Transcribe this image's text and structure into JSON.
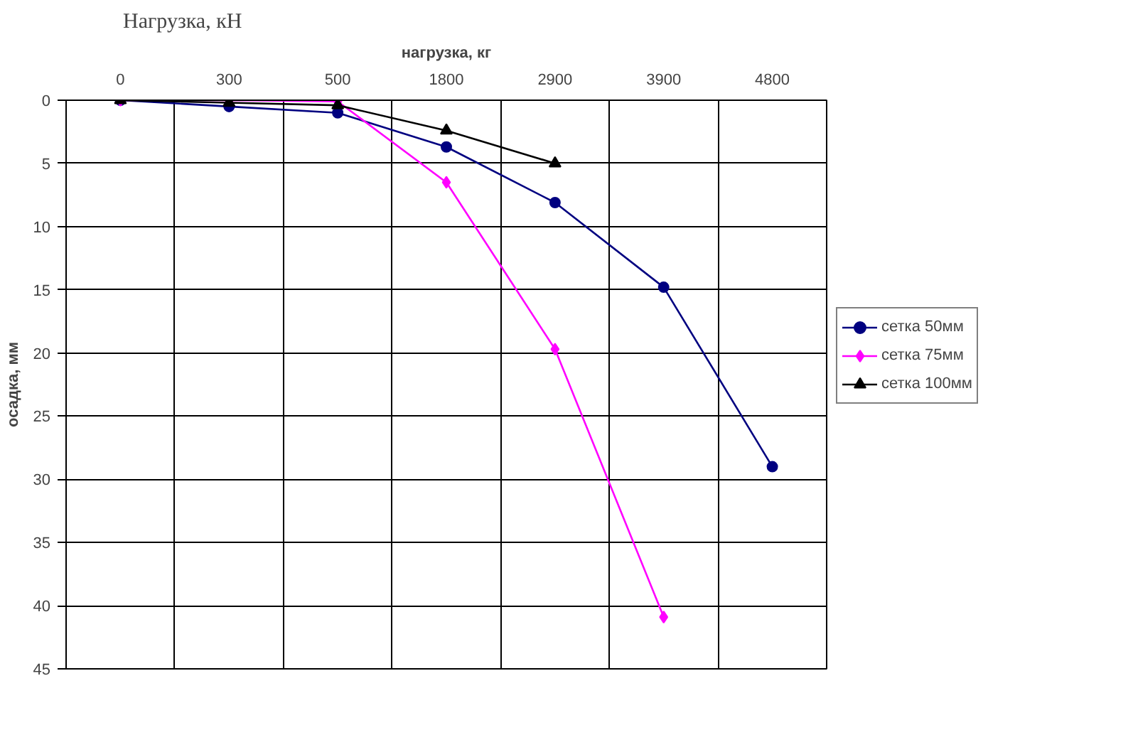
{
  "chart_data": {
    "type": "line",
    "title": "Нагрузка, кН",
    "xlabel": "нагрузка, кг",
    "ylabel": "осадка, мм",
    "categories": [
      "0",
      "300",
      "500",
      "1800",
      "2900",
      "3900",
      "4800"
    ],
    "series": [
      {
        "name": "сетка 50мм",
        "color": "#000080",
        "marker": "circle",
        "values": [
          0,
          0.5,
          1.0,
          3.7,
          8.1,
          14.8,
          29.0
        ]
      },
      {
        "name": "сетка 75мм",
        "color": "#ff00ff",
        "marker": "diamond",
        "values": [
          0,
          0,
          0.1,
          6.5,
          19.7,
          40.9,
          null
        ]
      },
      {
        "name": "сетка 100мм",
        "color": "#000000",
        "marker": "triangle",
        "values": [
          0,
          0.2,
          0.4,
          2.4,
          5.0,
          null,
          null
        ]
      }
    ],
    "ylim": [
      45,
      0
    ],
    "yticks": [
      0,
      5,
      10,
      15,
      20,
      25,
      30,
      35,
      40,
      45
    ],
    "grid": true,
    "legend": "right",
    "line_style": "solid"
  }
}
